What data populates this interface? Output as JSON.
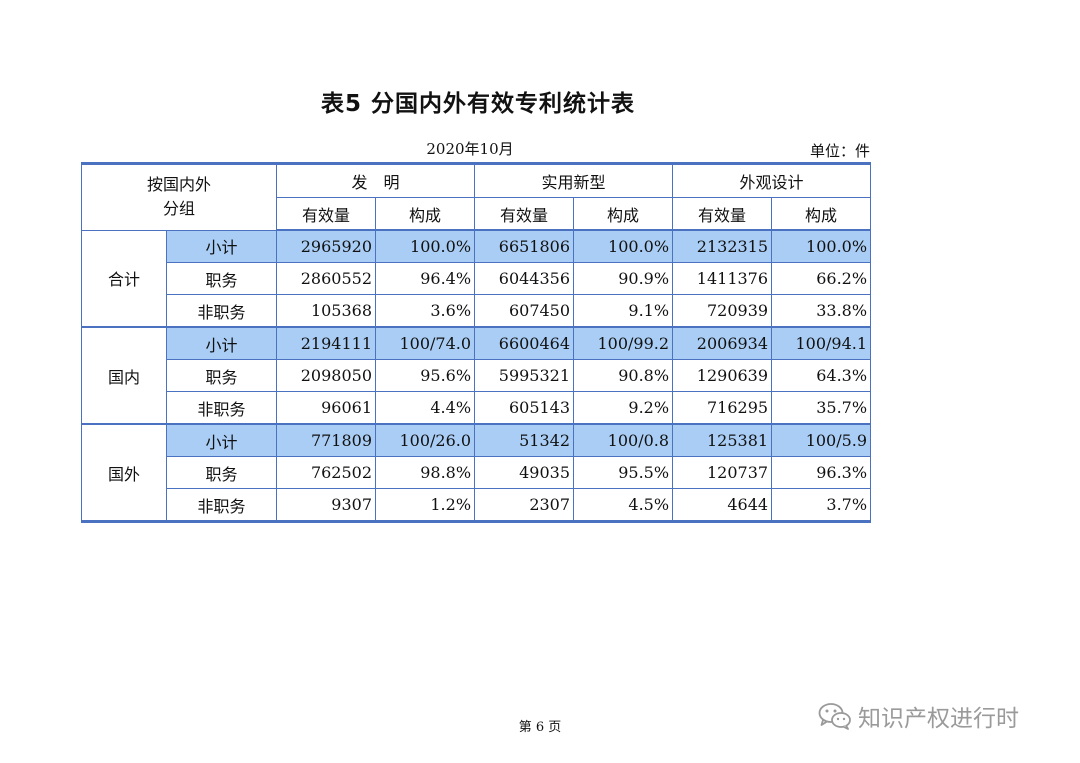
{
  "title": "表5  分国内外有效专利统计表",
  "date": "2020年10月",
  "unit": "单位：件",
  "table": {
    "corner_line1": "按国内外",
    "corner_line2": "分组",
    "categories": [
      "发　明",
      "实用新型",
      "外观设计"
    ],
    "subheaders": [
      "有效量",
      "构成",
      "有效量",
      "构成",
      "有效量",
      "构成"
    ],
    "groups": [
      {
        "name": "合计",
        "rows": [
          {
            "label": "小计",
            "cells": [
              "2965920",
              "100.0%",
              "6651806",
              "100.0%",
              "2132315",
              "100.0%"
            ]
          },
          {
            "label": "职务",
            "cells": [
              "2860552",
              "96.4%",
              "6044356",
              "90.9%",
              "1411376",
              "66.2%"
            ]
          },
          {
            "label": "非职务",
            "cells": [
              "105368",
              "3.6%",
              "607450",
              "9.1%",
              "720939",
              "33.8%"
            ]
          }
        ]
      },
      {
        "name": "国内",
        "rows": [
          {
            "label": "小计",
            "cells": [
              "2194111",
              "100/74.0",
              "6600464",
              "100/99.2",
              "2006934",
              "100/94.1"
            ]
          },
          {
            "label": "职务",
            "cells": [
              "2098050",
              "95.6%",
              "5995321",
              "90.8%",
              "1290639",
              "64.3%"
            ]
          },
          {
            "label": "非职务",
            "cells": [
              "96061",
              "4.4%",
              "605143",
              "9.2%",
              "716295",
              "35.7%"
            ]
          }
        ]
      },
      {
        "name": "国外",
        "rows": [
          {
            "label": "小计",
            "cells": [
              "771809",
              "100/26.0",
              "51342",
              "100/0.8",
              "125381",
              "100/5.9"
            ]
          },
          {
            "label": "职务",
            "cells": [
              "762502",
              "98.8%",
              "49035",
              "95.5%",
              "120737",
              "96.3%"
            ]
          },
          {
            "label": "非职务",
            "cells": [
              "9307",
              "1.2%",
              "2307",
              "4.5%",
              "4644",
              "3.7%"
            ]
          }
        ]
      }
    ]
  },
  "footer": "第 6 页",
  "watermark": {
    "icon": "wechat-icon",
    "text": "知识产权进行时"
  },
  "colors": {
    "border": "#4a72c0",
    "highlight": "#a9cdf4"
  }
}
